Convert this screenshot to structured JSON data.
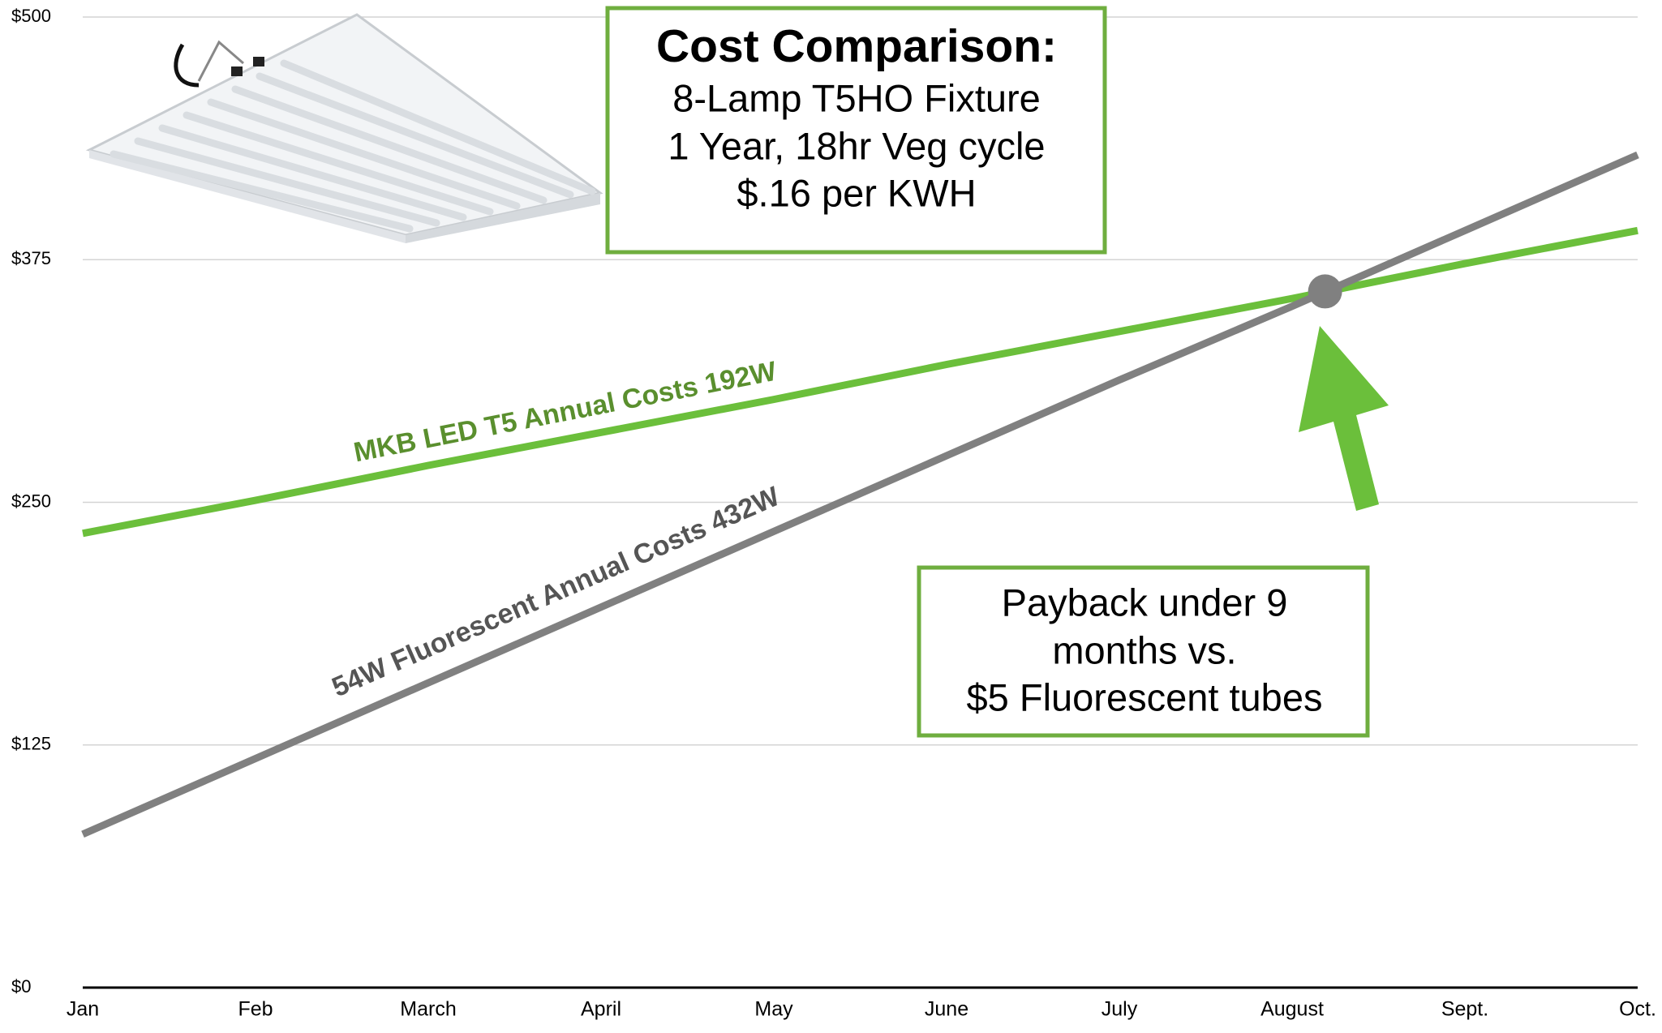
{
  "chart_data": {
    "type": "line",
    "title": "Cost Comparison:",
    "subtitle_lines": [
      "8-Lamp T5HO Fixture",
      "1 Year, 18hr Veg cycle",
      "$.16 per KWH"
    ],
    "annotation_lines": [
      "Payback under 9",
      "months vs.",
      "$5 Fluorescent tubes"
    ],
    "categories": [
      "Jan",
      "Feb",
      "March",
      "April",
      "May",
      "June",
      "July",
      "August",
      "Sept.",
      "Oct."
    ],
    "series": [
      {
        "name": "MKB LED T5 Annual Costs 192W",
        "color": "#6bbf3b",
        "label_color": "#5a8f2e",
        "values": [
          234,
          251,
          269,
          286,
          303,
          321,
          338,
          355,
          373,
          390
        ]
      },
      {
        "name": "54W Fluorescent Annual Costs 432W",
        "color": "#808080",
        "label_color": "#555555",
        "values": [
          79,
          118,
          157,
          196,
          235,
          274,
          313,
          351,
          390,
          429
        ]
      }
    ],
    "ylim": [
      0,
      500
    ],
    "yticks": [
      {
        "value": 0,
        "label": "$0"
      },
      {
        "value": 125,
        "label": "$125"
      },
      {
        "value": 250,
        "label": "$250"
      },
      {
        "value": 375,
        "label": "$375"
      },
      {
        "value": 500,
        "label": "$500"
      }
    ],
    "grid": true
  }
}
